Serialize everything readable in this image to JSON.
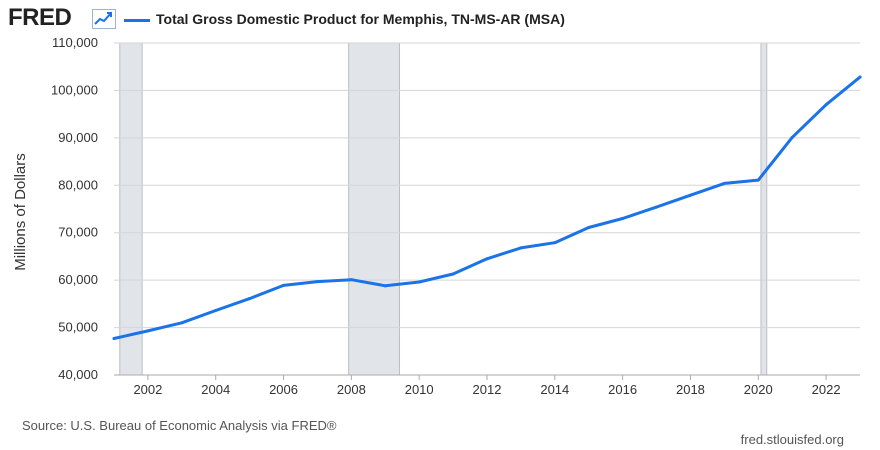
{
  "header": {
    "logo": "FRED",
    "logo_icon": "chart-line-icon"
  },
  "chart_data": {
    "type": "line",
    "legend_placement": "top-left",
    "ylabel": "Millions of Dollars",
    "xlabel": "",
    "ylim": [
      40000,
      110000
    ],
    "xlim": [
      2001,
      2023
    ],
    "grid": true,
    "y_ticks": [
      40000,
      50000,
      60000,
      70000,
      80000,
      90000,
      100000,
      110000
    ],
    "y_tick_labels": [
      "40,000",
      "50,000",
      "60,000",
      "70,000",
      "80,000",
      "90,000",
      "100,000",
      "110,000"
    ],
    "x_ticks": [
      2002,
      2004,
      2006,
      2008,
      2010,
      2012,
      2014,
      2016,
      2018,
      2020,
      2022
    ],
    "x_tick_labels": [
      "2002",
      "2004",
      "2006",
      "2008",
      "2010",
      "2012",
      "2014",
      "2016",
      "2018",
      "2020",
      "2022"
    ],
    "recessions": [
      [
        2001.17,
        2001.83
      ],
      [
        2007.92,
        2009.42
      ],
      [
        2020.08,
        2020.25
      ]
    ],
    "series": [
      {
        "name": "Total Gross Domestic Product for Memphis, TN-MS-AR (MSA)",
        "color": "#1a73e8",
        "x": [
          2001,
          2002,
          2003,
          2004,
          2005,
          2006,
          2007,
          2008,
          2009,
          2010,
          2011,
          2012,
          2013,
          2014,
          2015,
          2016,
          2017,
          2018,
          2019,
          2020,
          2021,
          2022,
          2023
        ],
        "values": [
          47700,
          49300,
          51000,
          53600,
          56100,
          58900,
          59700,
          60100,
          58800,
          59600,
          61300,
          64500,
          66800,
          67900,
          71100,
          73000,
          75400,
          77900,
          80400,
          81100,
          90100,
          97000,
          102800
        ]
      }
    ]
  },
  "footer": {
    "source": "Source: U.S. Bureau of Economic Analysis via FRED®",
    "url": "fred.stlouisfed.org"
  }
}
